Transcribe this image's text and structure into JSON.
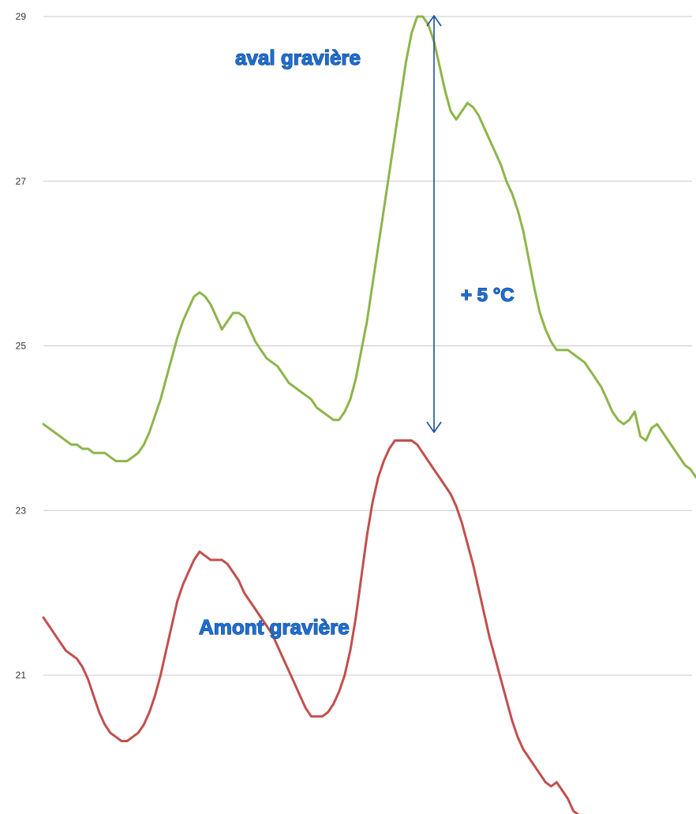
{
  "chart_data": {
    "type": "line",
    "ylim": [
      19.3,
      29.2
    ],
    "yticks": [
      21,
      23,
      25,
      27,
      29
    ],
    "grid": true,
    "series": [
      {
        "name": "aval gravière",
        "color": "#8db54a",
        "values": [
          24.05,
          24.0,
          23.95,
          23.9,
          23.85,
          23.8,
          23.8,
          23.75,
          23.75,
          23.7,
          23.7,
          23.7,
          23.65,
          23.6,
          23.6,
          23.6,
          23.65,
          23.7,
          23.8,
          23.95,
          24.15,
          24.35,
          24.6,
          24.85,
          25.1,
          25.3,
          25.45,
          25.6,
          25.65,
          25.6,
          25.5,
          25.35,
          25.2,
          25.3,
          25.4,
          25.4,
          25.35,
          25.2,
          25.05,
          24.95,
          24.85,
          24.8,
          24.75,
          24.65,
          24.55,
          24.5,
          24.45,
          24.4,
          24.35,
          24.25,
          24.2,
          24.15,
          24.1,
          24.1,
          24.2,
          24.35,
          24.6,
          24.95,
          25.3,
          25.75,
          26.2,
          26.65,
          27.1,
          27.55,
          28.0,
          28.45,
          28.8,
          29.0,
          29.0,
          28.9,
          28.7,
          28.4,
          28.1,
          27.85,
          27.75,
          27.85,
          27.95,
          27.9,
          27.8,
          27.65,
          27.5,
          27.35,
          27.2,
          27.0,
          26.85,
          26.65,
          26.4,
          26.05,
          25.7,
          25.4,
          25.2,
          25.05,
          24.95,
          24.95,
          24.95,
          24.9,
          24.85,
          24.8,
          24.7,
          24.6,
          24.5,
          24.35,
          24.2,
          24.1,
          24.05,
          24.1,
          24.2,
          23.9,
          23.85,
          24.0,
          24.05,
          23.95,
          23.85,
          23.75,
          23.65,
          23.55,
          23.5,
          23.4
        ]
      },
      {
        "name": "Amont gravière",
        "color": "#c0504d",
        "values": [
          21.7,
          21.6,
          21.5,
          21.4,
          21.3,
          21.25,
          21.2,
          21.1,
          20.95,
          20.75,
          20.55,
          20.4,
          20.3,
          20.25,
          20.2,
          20.2,
          20.25,
          20.3,
          20.4,
          20.55,
          20.75,
          21.0,
          21.3,
          21.6,
          21.9,
          22.1,
          22.25,
          22.4,
          22.5,
          22.45,
          22.4,
          22.4,
          22.4,
          22.35,
          22.25,
          22.15,
          22.0,
          21.9,
          21.8,
          21.7,
          21.6,
          21.5,
          21.35,
          21.2,
          21.05,
          20.9,
          20.75,
          20.6,
          20.5,
          20.5,
          20.5,
          20.55,
          20.65,
          20.8,
          21.0,
          21.3,
          21.7,
          22.2,
          22.7,
          23.1,
          23.4,
          23.6,
          23.75,
          23.85,
          23.85,
          23.85,
          23.85,
          23.8,
          23.7,
          23.6,
          23.5,
          23.4,
          23.3,
          23.2,
          23.05,
          22.85,
          22.6,
          22.35,
          22.05,
          21.75,
          21.45,
          21.2,
          20.95,
          20.7,
          20.45,
          20.25,
          20.1,
          20.0,
          19.9,
          19.8,
          19.7,
          19.65,
          19.7,
          19.6,
          19.5,
          19.35,
          19.3,
          19.3,
          19.25
        ]
      }
    ],
    "annotations": {
      "top_label": "aval gravière",
      "bottom_label": "Amont gravière",
      "difference_label": "+ 5 °C"
    },
    "arrow_color": "#1f4e9a"
  }
}
